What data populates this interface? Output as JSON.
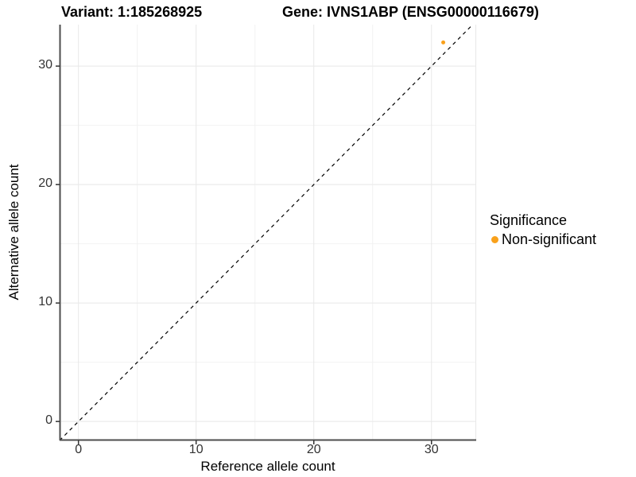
{
  "header": {
    "variant_title": "Variant: 1:185268925",
    "gene_title": "Gene: IVNS1ABP (ENSG00000116679)"
  },
  "legend": {
    "title": "Significance",
    "items": [
      {
        "label": "Non-significant",
        "color": "#F9A11B"
      }
    ]
  },
  "chart_data": {
    "type": "scatter",
    "title": "Variant: 1:185268925 | Gene: IVNS1ABP (ENSG00000116679)",
    "xlabel": "Reference allele count",
    "ylabel": "Alternative allele count",
    "xlim": [
      -1.6,
      33.8
    ],
    "ylim": [
      -1.6,
      33.5
    ],
    "x_ticks": [
      0,
      10,
      20,
      30
    ],
    "y_ticks": [
      0,
      10,
      20,
      30
    ],
    "x_minor_gridlines": [
      5,
      15,
      25
    ],
    "y_minor_gridlines": [
      5,
      15,
      25
    ],
    "grid": "major and minor, light gray on white",
    "legend_position": "right",
    "identity_line": {
      "slope": 1,
      "intercept": 0,
      "style": "dashed",
      "color": "#000000"
    },
    "series": [
      {
        "name": "Non-significant",
        "color": "#F9A11B",
        "points": [
          {
            "x": 31,
            "y": 32
          }
        ]
      }
    ]
  },
  "colors": {
    "axis_line": "#4d4d4d",
    "tick_mark": "#333333",
    "tick_text": "#333333",
    "grid_major": "#e8e8e8",
    "grid_minor": "#f2f2f2",
    "panel_edge_line": "#e8e8e8",
    "background": "#ffffff"
  }
}
